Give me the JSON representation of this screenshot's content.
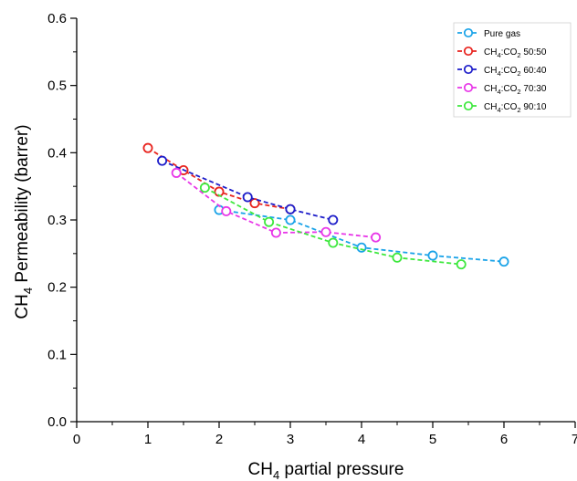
{
  "chart_data": {
    "type": "line",
    "title": "",
    "xlabel": {
      "main": "CH",
      "sub": "4",
      "rest": " partial pressure"
    },
    "ylabel": {
      "main": "CH",
      "sub": "4",
      "rest": " Permeability (barrer)"
    },
    "xlim": [
      0,
      7
    ],
    "ylim": [
      0.0,
      0.6
    ],
    "xticks": [
      "0",
      "1",
      "2",
      "3",
      "4",
      "5",
      "6",
      "7"
    ],
    "yticks": [
      "0.0",
      "0.1",
      "0.2",
      "0.3",
      "0.4",
      "0.5",
      "0.6"
    ],
    "grid": false,
    "legend_position": "top-right",
    "line_style": "dashed",
    "marker": "open-circle",
    "series": [
      {
        "name": "Pure gas",
        "legend_parts": [
          "Pure gas"
        ],
        "color": "#1aa3e8",
        "x": [
          2.0,
          3.0,
          4.0,
          5.0,
          6.0
        ],
        "y": [
          0.315,
          0.3,
          0.259,
          0.247,
          0.238
        ]
      },
      {
        "name": "CH4:CO2 50:50",
        "legend_parts": [
          "CH",
          "4",
          ":CO",
          "2",
          " 50:50"
        ],
        "color": "#e8231e",
        "x": [
          1.0,
          1.5,
          2.0,
          2.5,
          3.0
        ],
        "y": [
          0.407,
          0.374,
          0.342,
          0.325,
          0.316
        ]
      },
      {
        "name": "CH4:CO2 60:40",
        "legend_parts": [
          "CH",
          "4",
          ":CO",
          "2",
          " 60:40"
        ],
        "color": "#1d1dc9",
        "x": [
          1.2,
          2.4,
          3.0,
          3.6
        ],
        "y": [
          0.388,
          0.334,
          0.316,
          0.3
        ]
      },
      {
        "name": "CH4:CO2 70:30",
        "legend_parts": [
          "CH",
          "4",
          ":CO",
          "2",
          " 70:30"
        ],
        "color": "#e837e8",
        "x": [
          1.4,
          2.1,
          2.8,
          3.5,
          4.2
        ],
        "y": [
          0.37,
          0.313,
          0.281,
          0.282,
          0.274
        ]
      },
      {
        "name": "CH4:CO2 90:10",
        "legend_parts": [
          "CH",
          "4",
          ":CO",
          "2",
          " 90:10"
        ],
        "color": "#3ee83e",
        "x": [
          1.8,
          2.7,
          3.6,
          4.5,
          5.4
        ],
        "y": [
          0.348,
          0.297,
          0.266,
          0.244,
          0.234
        ]
      }
    ]
  }
}
